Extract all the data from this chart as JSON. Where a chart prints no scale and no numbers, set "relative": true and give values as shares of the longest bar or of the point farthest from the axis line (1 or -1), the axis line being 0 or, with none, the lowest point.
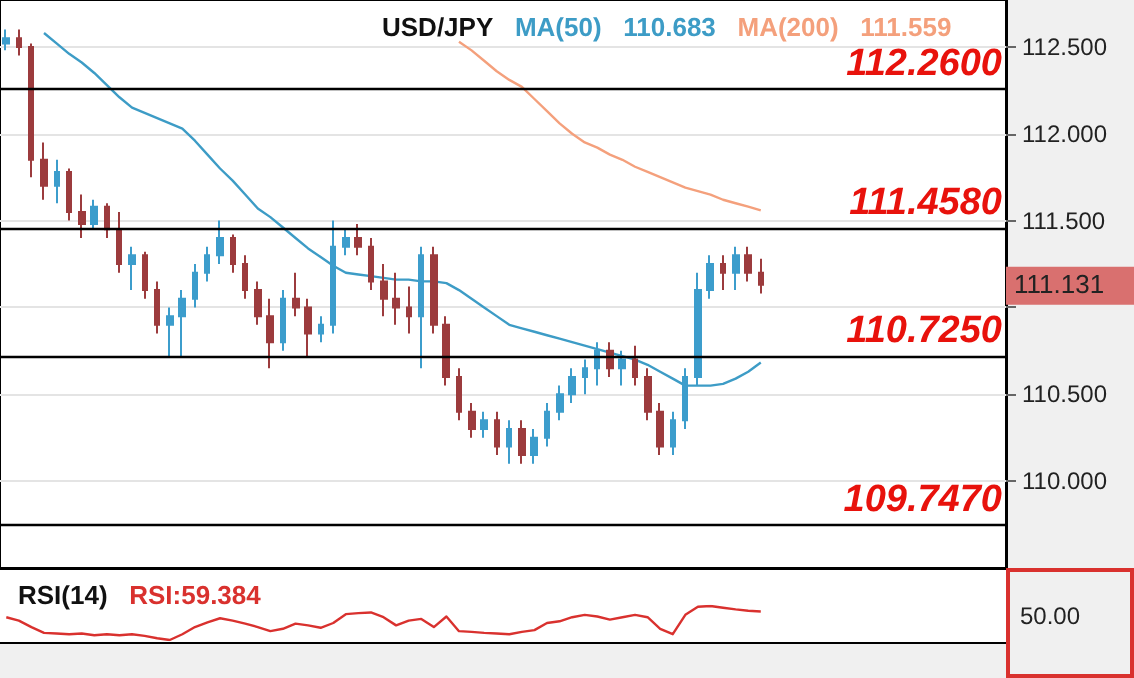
{
  "chart_data": [
    {
      "type": "candlestick",
      "title": "USD/JPY",
      "categories": [
        null,
        null,
        null,
        null,
        null,
        null,
        null,
        null,
        null,
        null,
        null,
        null,
        null,
        null,
        null,
        null,
        null,
        null,
        null,
        null,
        null,
        null,
        null,
        null,
        null,
        null,
        null,
        null,
        null,
        null,
        null,
        null,
        null,
        null,
        null,
        null,
        null,
        null,
        null,
        null,
        null,
        null,
        null,
        null,
        null,
        null,
        null,
        null,
        null,
        null,
        null,
        null,
        null,
        null,
        null,
        null,
        null,
        null,
        null,
        null,
        null,
        null,
        null,
        null,
        null,
        null,
        null,
        null,
        null,
        null,
        null,
        null,
        null,
        null,
        null,
        null,
        null,
        null,
        null,
        null
      ],
      "ohlc": [
        [
          112.52,
          112.6,
          112.48,
          112.55
        ],
        [
          112.55,
          112.6,
          112.45,
          112.5
        ],
        [
          112.5,
          112.52,
          111.75,
          111.85
        ],
        [
          111.85,
          111.95,
          111.62,
          111.7
        ],
        [
          111.7,
          111.85,
          111.6,
          111.78
        ],
        [
          111.78,
          111.8,
          111.5,
          111.55
        ],
        [
          111.55,
          111.65,
          111.4,
          111.48
        ],
        [
          111.48,
          111.62,
          111.45,
          111.58
        ],
        [
          111.58,
          111.6,
          111.4,
          111.45
        ],
        [
          111.45,
          111.55,
          111.2,
          111.25
        ],
        [
          111.25,
          111.35,
          111.1,
          111.3
        ],
        [
          111.3,
          111.32,
          111.05,
          111.1
        ],
        [
          111.1,
          111.15,
          110.85,
          110.9
        ],
        [
          110.9,
          111.0,
          110.72,
          110.95
        ],
        [
          110.95,
          111.1,
          110.72,
          111.05
        ],
        [
          111.05,
          111.25,
          111.0,
          111.2
        ],
        [
          111.2,
          111.35,
          111.15,
          111.3
        ],
        [
          111.3,
          111.5,
          111.25,
          111.4
        ],
        [
          111.4,
          111.42,
          111.2,
          111.25
        ],
        [
          111.25,
          111.3,
          111.05,
          111.1
        ],
        [
          111.1,
          111.15,
          110.9,
          110.95
        ],
        [
          110.95,
          111.05,
          110.65,
          110.8
        ],
        [
          110.8,
          111.1,
          110.75,
          111.05
        ],
        [
          111.05,
          111.2,
          110.95,
          111.0
        ],
        [
          111.0,
          111.05,
          110.72,
          110.85
        ],
        [
          110.85,
          110.95,
          110.8,
          110.9
        ],
        [
          110.9,
          111.5,
          110.85,
          111.35
        ],
        [
          111.35,
          111.45,
          111.3,
          111.4
        ],
        [
          111.4,
          111.48,
          111.3,
          111.35
        ],
        [
          111.35,
          111.4,
          111.1,
          111.15
        ],
        [
          111.15,
          111.25,
          110.95,
          111.05
        ],
        [
          111.05,
          111.2,
          110.9,
          111.0
        ],
        [
          111.0,
          111.12,
          110.85,
          110.95
        ],
        [
          110.95,
          111.35,
          110.65,
          111.3
        ],
        [
          111.3,
          111.35,
          110.85,
          110.9
        ],
        [
          110.9,
          110.95,
          110.55,
          110.6
        ],
        [
          110.6,
          110.65,
          110.35,
          110.4
        ],
        [
          110.4,
          110.45,
          110.25,
          110.3
        ],
        [
          110.3,
          110.4,
          110.25,
          110.35
        ],
        [
          110.35,
          110.4,
          110.15,
          110.2
        ],
        [
          110.2,
          110.35,
          110.1,
          110.3
        ],
        [
          110.3,
          110.35,
          110.1,
          110.15
        ],
        [
          110.15,
          110.3,
          110.1,
          110.25
        ],
        [
          110.25,
          110.45,
          110.2,
          110.4
        ],
        [
          110.4,
          110.55,
          110.35,
          110.5
        ],
        [
          110.5,
          110.65,
          110.45,
          110.6
        ],
        [
          110.6,
          110.7,
          110.5,
          110.65
        ],
        [
          110.65,
          110.8,
          110.55,
          110.75
        ],
        [
          110.75,
          110.8,
          110.6,
          110.65
        ],
        [
          110.65,
          110.75,
          110.55,
          110.7
        ],
        [
          110.7,
          110.78,
          110.55,
          110.6
        ],
        [
          110.6,
          110.65,
          110.35,
          110.4
        ],
        [
          110.4,
          110.45,
          110.15,
          110.2
        ],
        [
          110.2,
          110.4,
          110.15,
          110.35
        ],
        [
          110.35,
          110.65,
          110.3,
          110.6
        ],
        [
          110.6,
          111.2,
          110.55,
          111.1
        ],
        [
          111.1,
          111.3,
          111.05,
          111.25
        ],
        [
          111.25,
          111.3,
          111.1,
          111.2
        ],
        [
          111.2,
          111.35,
          111.1,
          111.3
        ],
        [
          111.3,
          111.35,
          111.15,
          111.2
        ],
        [
          111.2,
          111.28,
          111.08,
          111.131
        ],
        null,
        null,
        null,
        null,
        null,
        null,
        null,
        null,
        null,
        null,
        null,
        null,
        null,
        null,
        null,
        null,
        null,
        null,
        null
      ],
      "colors": [
        "#3c9dcc",
        "#9c3b3d",
        "#9c3b3d",
        "#9c3b3d",
        "#3c9dcc",
        "#9c3b3d",
        "#9c3b3d",
        "#3c9dcc",
        "#9c3b3d",
        "#9c3b3d",
        "#3c9dcc",
        "#9c3b3d",
        "#9c3b3d",
        "#3c9dcc",
        "#3c9dcc",
        "#3c9dcc",
        "#3c9dcc",
        "#3c9dcc",
        "#9c3b3d",
        "#9c3b3d",
        "#9c3b3d",
        "#9c3b3d",
        "#3c9dcc",
        "#9c3b3d",
        "#9c3b3d",
        "#3c9dcc",
        "#3c9dcc",
        "#3c9dcc",
        "#9c3b3d",
        "#9c3b3d",
        "#9c3b3d",
        "#9c3b3d",
        "#9c3b3d",
        "#3c9dcc",
        "#9c3b3d",
        "#9c3b3d",
        "#9c3b3d",
        "#9c3b3d",
        "#3c9dcc",
        "#9c3b3d",
        "#3c9dcc",
        "#9c3b3d",
        "#3c9dcc",
        "#3c9dcc",
        "#3c9dcc",
        "#3c9dcc",
        "#3c9dcc",
        "#3c9dcc",
        "#9c3b3d",
        "#3c9dcc",
        "#9c3b3d",
        "#9c3b3d",
        "#9c3b3d",
        "#3c9dcc",
        "#3c9dcc",
        "#3c9dcc",
        "#3c9dcc",
        "#9c3b3d",
        "#3c9dcc",
        "#9c3b3d",
        "#9c3b3d",
        null,
        null,
        null,
        null,
        null,
        null,
        null,
        null,
        null,
        null,
        null,
        null,
        null,
        null,
        null,
        null,
        null,
        null,
        null
      ],
      "series": [
        {
          "name": "MA(50)",
          "type": "line",
          "color": "#3d9cc6",
          "values": [
            null,
            null,
            null,
            112.58,
            112.52,
            112.46,
            112.41,
            112.35,
            112.28,
            112.21,
            112.15,
            112.12,
            112.09,
            112.06,
            112.03,
            111.96,
            111.88,
            111.8,
            111.73,
            111.65,
            111.57,
            111.52,
            111.46,
            111.4,
            111.34,
            111.29,
            111.24,
            111.2,
            111.19,
            111.18,
            111.17,
            111.16,
            111.16,
            111.15,
            111.15,
            111.14,
            111.1,
            111.05,
            111.0,
            110.95,
            110.9,
            110.88,
            110.86,
            110.84,
            110.82,
            110.8,
            110.78,
            110.76,
            110.74,
            110.72,
            110.7,
            110.67,
            110.63,
            110.59,
            110.55,
            110.55,
            110.55,
            110.56,
            110.59,
            110.63,
            110.683,
            null,
            null,
            null,
            null,
            null,
            null,
            null,
            null,
            null,
            null,
            null,
            null,
            null,
            null,
            null,
            null,
            null,
            null,
            null
          ],
          "value_labels": [
            null,
            null,
            null,
            null,
            null,
            null,
            null,
            null,
            null,
            null,
            null,
            null,
            null,
            null,
            null,
            null,
            null,
            null,
            null,
            null,
            null,
            null,
            null,
            null,
            null,
            null,
            null,
            null,
            null,
            null,
            null,
            null,
            null,
            null,
            null,
            null,
            null,
            null,
            null,
            null,
            null,
            null,
            null,
            null,
            null,
            null,
            null,
            null,
            null,
            null,
            null,
            null,
            null,
            null,
            null,
            null,
            null,
            null,
            null,
            null,
            "110.683",
            null,
            null,
            null,
            null,
            null,
            null,
            null,
            null,
            null,
            null,
            null,
            null,
            null,
            null,
            null,
            null,
            null,
            null,
            null
          ]
        },
        {
          "name": "MA(200)",
          "type": "line",
          "color": "#f4a07c",
          "values": [
            null,
            null,
            null,
            null,
            null,
            null,
            null,
            null,
            null,
            null,
            null,
            null,
            null,
            null,
            null,
            null,
            null,
            null,
            null,
            null,
            null,
            null,
            null,
            null,
            null,
            null,
            null,
            null,
            null,
            null,
            null,
            null,
            null,
            null,
            null,
            null,
            112.53,
            112.48,
            112.42,
            112.36,
            112.31,
            112.27,
            112.2,
            112.13,
            112.06,
            112.0,
            111.95,
            111.92,
            111.88,
            111.85,
            111.81,
            111.78,
            111.75,
            111.72,
            111.69,
            111.67,
            111.65,
            111.62,
            111.6,
            111.58,
            111.559,
            null,
            null,
            null,
            null,
            null,
            null,
            null,
            null,
            null,
            null,
            null,
            null,
            null,
            null,
            null,
            null,
            null,
            null,
            null
          ],
          "value_labels": [
            null,
            null,
            null,
            null,
            null,
            null,
            null,
            null,
            null,
            null,
            null,
            null,
            null,
            null,
            null,
            null,
            null,
            null,
            null,
            null,
            null,
            null,
            null,
            null,
            null,
            null,
            null,
            null,
            null,
            null,
            null,
            null,
            null,
            null,
            null,
            null,
            null,
            null,
            null,
            null,
            null,
            null,
            null,
            null,
            null,
            null,
            null,
            null,
            null,
            null,
            null,
            null,
            null,
            null,
            null,
            null,
            null,
            null,
            null,
            null,
            "111.559",
            null,
            null,
            null,
            null,
            null,
            null,
            null,
            null,
            null,
            null,
            null,
            null,
            null,
            null,
            null,
            null,
            null,
            null,
            null
          ]
        }
      ],
      "ylim": [
        109.5,
        112.77
      ],
      "yticks": [
        {
          "value": 110,
          "label": "110.000"
        },
        {
          "value": 110.5,
          "label": "110.500"
        },
        {
          "value": 111,
          "label": null
        },
        {
          "value": 111.5,
          "label": "111.500"
        },
        {
          "value": 112,
          "label": "112.000"
        },
        {
          "value": 112.5,
          "label": "112.500"
        }
      ],
      "grid": "y",
      "legend": "top",
      "marker": "none",
      "tick_labels": "y",
      "ref_lines": [
        {
          "axis": "y",
          "value": 112.26,
          "label": "112.2600",
          "color": "#000000"
        },
        {
          "axis": "y",
          "value": 111.458,
          "label": "111.4580",
          "color": "#000000"
        },
        {
          "axis": "y",
          "value": 110.725,
          "label": "110.7250",
          "color": "#000000"
        },
        {
          "axis": "y",
          "value": 109.747,
          "label": "109.7470",
          "color": "#000000"
        }
      ],
      "annotations": [
        "111.131"
      ]
    },
    {
      "type": "line",
      "title": "RSI(14)",
      "relative": true,
      "categories": [
        null,
        null,
        null,
        null,
        null,
        null,
        null,
        null,
        null,
        null,
        null,
        null,
        null,
        null,
        null,
        null,
        null,
        null,
        null,
        null,
        null,
        null,
        null,
        null,
        null,
        null,
        null,
        null,
        null,
        null,
        null,
        null,
        null,
        null,
        null,
        null,
        null,
        null,
        null,
        null,
        null,
        null,
        null,
        null,
        null,
        null,
        null,
        null,
        null,
        null,
        null,
        null,
        null,
        null,
        null,
        null,
        null,
        null,
        null,
        null,
        null,
        null,
        null,
        null,
        null,
        null,
        null,
        null,
        null,
        null,
        null,
        null,
        null,
        null,
        null,
        null,
        null,
        null,
        null,
        null
      ],
      "series": [
        {
          "color": "#d9312e",
          "values": [
            0.67,
            0.57,
            0.38,
            0.21,
            0.19,
            0.17,
            0.19,
            0.14,
            0.17,
            0.14,
            0.17,
            0.12,
            0.05,
            0,
            0.17,
            0.38,
            0.52,
            0.64,
            0.57,
            0.48,
            0.38,
            0.26,
            0.33,
            0.48,
            0.43,
            0.36,
            0.5,
            0.76,
            0.79,
            0.81,
            0.67,
            0.43,
            0.57,
            0.62,
            0.38,
            0.69,
            0.26,
            0.24,
            0.21,
            0.19,
            0.17,
            0.24,
            0.29,
            0.5,
            0.55,
            0.67,
            0.74,
            0.69,
            0.6,
            0.67,
            0.74,
            0.67,
            0.33,
            0.17,
            0.74,
            0.98,
            1,
            0.95,
            0.9,
            0.86,
            0.84,
            null,
            null,
            null,
            null,
            null,
            null,
            null,
            null,
            null,
            null,
            null,
            null,
            null,
            null,
            null,
            null,
            null,
            null,
            null
          ]
        }
      ],
      "tick_labels": false,
      "marker": "none",
      "annotations": [
        "RSI:59.384",
        "50.00"
      ]
    }
  ]
}
